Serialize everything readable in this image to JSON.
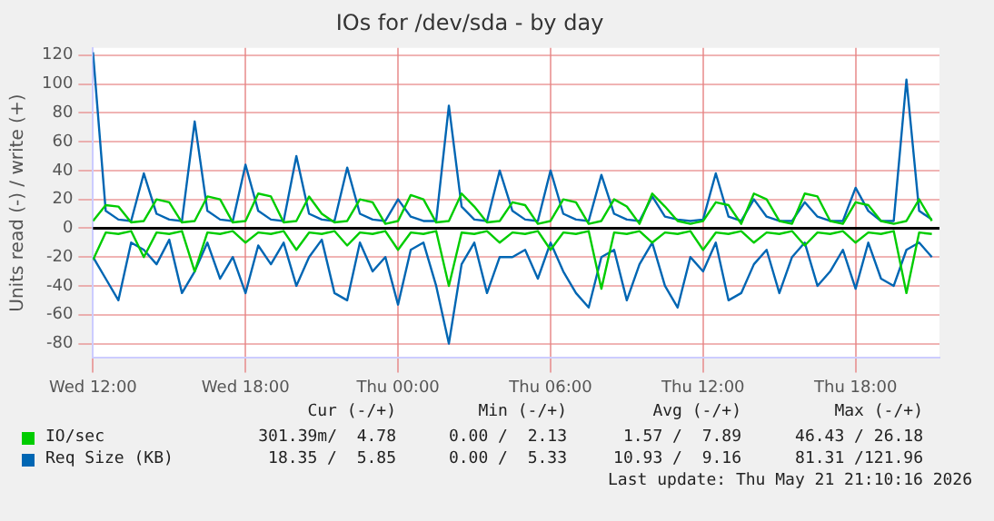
{
  "chart_data": {
    "type": "line",
    "title": "IOs for /dev/sda - by day",
    "ylabel": "Units read (-) / write (+)",
    "x": [
      "2026-05-20T12:00",
      "2026-05-20T12:30",
      "2026-05-20T13:00",
      "2026-05-20T13:30",
      "2026-05-20T14:00",
      "2026-05-20T14:30",
      "2026-05-20T15:00",
      "2026-05-20T15:30",
      "2026-05-20T16:00",
      "2026-05-20T16:30",
      "2026-05-20T17:00",
      "2026-05-20T17:30",
      "2026-05-20T18:00",
      "2026-05-20T18:30",
      "2026-05-20T19:00",
      "2026-05-20T19:30",
      "2026-05-20T20:00",
      "2026-05-20T20:30",
      "2026-05-20T21:00",
      "2026-05-20T21:30",
      "2026-05-20T22:00",
      "2026-05-20T22:30",
      "2026-05-20T23:00",
      "2026-05-20T23:30",
      "2026-05-21T00:00",
      "2026-05-21T00:30",
      "2026-05-21T01:00",
      "2026-05-21T01:30",
      "2026-05-21T02:00",
      "2026-05-21T02:30",
      "2026-05-21T03:00",
      "2026-05-21T03:30",
      "2026-05-21T04:00",
      "2026-05-21T04:30",
      "2026-05-21T05:00",
      "2026-05-21T05:30",
      "2026-05-21T06:00",
      "2026-05-21T06:30",
      "2026-05-21T07:00",
      "2026-05-21T07:30",
      "2026-05-21T08:00",
      "2026-05-21T08:30",
      "2026-05-21T09:00",
      "2026-05-21T09:30",
      "2026-05-21T10:00",
      "2026-05-21T10:30",
      "2026-05-21T11:00",
      "2026-05-21T11:30",
      "2026-05-21T12:00",
      "2026-05-21T12:30",
      "2026-05-21T13:00",
      "2026-05-21T13:30",
      "2026-05-21T14:00",
      "2026-05-21T14:30",
      "2026-05-21T15:00",
      "2026-05-21T15:30",
      "2026-05-21T16:00",
      "2026-05-21T16:30",
      "2026-05-21T17:00",
      "2026-05-21T17:30",
      "2026-05-21T18:00",
      "2026-05-21T18:30",
      "2026-05-21T19:00",
      "2026-05-21T19:30",
      "2026-05-21T20:00",
      "2026-05-21T20:30",
      "2026-05-21T21:00"
    ],
    "series": [
      {
        "name": "IO/sec",
        "color": "#00cc00",
        "values": [
          5,
          16,
          15,
          4,
          5,
          20,
          18,
          4,
          5,
          22,
          20,
          4,
          5,
          24,
          22,
          4,
          5,
          22,
          10,
          4,
          5,
          20,
          18,
          3,
          5,
          23,
          20,
          4,
          5,
          24,
          15,
          4,
          5,
          18,
          16,
          3,
          5,
          20,
          18,
          3,
          5,
          20,
          15,
          3,
          24,
          15,
          5,
          3,
          5,
          18,
          16,
          3,
          24,
          20,
          5,
          3,
          24,
          22,
          5,
          3,
          18,
          16,
          5,
          3,
          5,
          20,
          5
        ]
      },
      {
        "color": "#00cc00",
        "values": [
          -22,
          -3,
          -4,
          -2,
          -20,
          -3,
          -4,
          -2,
          -30,
          -3,
          -4,
          -2,
          -10,
          -3,
          -4,
          -2,
          -15,
          -3,
          -4,
          -2,
          -12,
          -3,
          -4,
          -2,
          -15,
          -3,
          -4,
          -2,
          -40,
          -3,
          -4,
          -2,
          -10,
          -3,
          -4,
          -2,
          -15,
          -3,
          -4,
          -2,
          -42,
          -3,
          -4,
          -2,
          -10,
          -3,
          -4,
          -2,
          -15,
          -3,
          -4,
          -2,
          -10,
          -3,
          -4,
          -2,
          -12,
          -3,
          -4,
          -2,
          -10,
          -3,
          -4,
          -2,
          -45,
          -3,
          -4
        ]
      },
      {
        "name": "Req Size (KB)",
        "color": "#0066b3",
        "values": [
          122,
          12,
          6,
          5,
          38,
          10,
          6,
          5,
          74,
          12,
          6,
          5,
          44,
          12,
          6,
          5,
          50,
          10,
          6,
          5,
          42,
          10,
          6,
          5,
          20,
          8,
          5,
          5,
          85,
          15,
          6,
          5,
          40,
          12,
          6,
          5,
          40,
          10,
          6,
          5,
          37,
          10,
          6,
          5,
          22,
          8,
          6,
          5,
          6,
          38,
          8,
          5,
          20,
          8,
          5,
          5,
          18,
          8,
          5,
          5,
          28,
          12,
          5,
          5,
          103,
          12,
          6
        ]
      },
      {
        "color": "#0066b3",
        "values": [
          -20,
          -35,
          -50,
          -10,
          -15,
          -25,
          -8,
          -45,
          -30,
          -10,
          -35,
          -20,
          -45,
          -12,
          -25,
          -10,
          -40,
          -20,
          -8,
          -45,
          -50,
          -10,
          -30,
          -20,
          -53,
          -15,
          -10,
          -40,
          -80,
          -25,
          -10,
          -45,
          -20,
          -20,
          -15,
          -35,
          -10,
          -30,
          -45,
          -55,
          -20,
          -15,
          -50,
          -25,
          -10,
          -40,
          -55,
          -20,
          -30,
          -10,
          -50,
          -45,
          -25,
          -15,
          -45,
          -20,
          -10,
          -40,
          -30,
          -15,
          -42,
          -10,
          -35,
          -40,
          -15,
          -10,
          -20
        ]
      }
    ],
    "xlim": [
      "2026-05-20T12:00",
      "2026-05-21T21:18"
    ],
    "xticks": [
      {
        "value": "2026-05-20T12:00",
        "label": "Wed 12:00"
      },
      {
        "value": "2026-05-20T18:00",
        "label": "Wed 18:00"
      },
      {
        "value": "2026-05-21T00:00",
        "label": "Thu 00:00"
      },
      {
        "value": "2026-05-21T06:00",
        "label": "Thu 06:00"
      },
      {
        "value": "2026-05-21T12:00",
        "label": "Thu 12:00"
      },
      {
        "value": "2026-05-21T18:00",
        "label": "Thu 18:00"
      }
    ],
    "ylim": [
      -90,
      125
    ],
    "yticks": [
      -80,
      -60,
      -40,
      -20,
      0,
      20,
      40,
      60,
      80,
      100,
      120
    ],
    "grid": true,
    "ref_lines": [
      {
        "axis": "y",
        "value": 0,
        "color": "#000000"
      }
    ],
    "legend": "bottom",
    "annotations": [
      "Cur (-/+)",
      "Min (-/+)",
      "Avg (-/+)",
      "Max (-/+)",
      "301.39m/  4.78",
      "0.00 /  2.13",
      "1.57 /  7.89",
      "46.43 / 26.18",
      "18.35 /  5.85",
      "0.00 /  5.33",
      "10.93 /  9.16",
      "81.31 /121.96",
      "Last update: Thu May 21 21:10:16 2026"
    ]
  }
}
